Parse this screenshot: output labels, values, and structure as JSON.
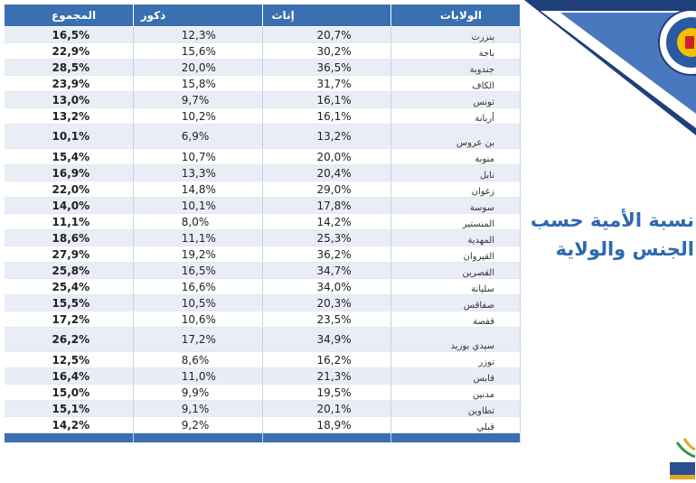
{
  "table": {
    "headers": [
      "المجموع",
      "ذكور",
      "إناث",
      "الولايات"
    ],
    "rows": [
      {
        "total": "16,5%",
        "male": "12,3%",
        "female": "20,7%",
        "gov": "بنزرت"
      },
      {
        "total": "22,9%",
        "male": "15,6%",
        "female": "30,2%",
        "gov": "باجة"
      },
      {
        "total": "28,5%",
        "male": "20,0%",
        "female": "36,5%",
        "gov": "جندوبة"
      },
      {
        "total": "23,9%",
        "male": "15,8%",
        "female": "31,7%",
        "gov": "الكاف"
      },
      {
        "total": "13,0%",
        "male": "9,7%",
        "female": "16,1%",
        "gov": "تونس"
      },
      {
        "total": "13,2%",
        "male": "10,2%",
        "female": "16,1%",
        "gov": "أريانة"
      },
      {
        "total": "10,1%",
        "male": "6,9%",
        "female": "13,2%",
        "gov": "بن عروس"
      },
      {
        "total": "15,4%",
        "male": "10,7%",
        "female": "20,0%",
        "gov": "منوبة"
      },
      {
        "total": "16,9%",
        "male": "13,3%",
        "female": "20,4%",
        "gov": "نابل"
      },
      {
        "total": "22,0%",
        "male": "14,8%",
        "female": "29,0%",
        "gov": "زغوان"
      },
      {
        "total": "14,0%",
        "male": "10,1%",
        "female": "17,8%",
        "gov": "سوسة"
      },
      {
        "total": "11,1%",
        "male": "8,0%",
        "female": "14,2%",
        "gov": "المنستير"
      },
      {
        "total": "18,6%",
        "male": "11,1%",
        "female": "25,3%",
        "gov": "المهدية"
      },
      {
        "total": "27,9%",
        "male": "19,2%",
        "female": "36,2%",
        "gov": "القيروان"
      },
      {
        "total": "25,8%",
        "male": "16,5%",
        "female": "34,7%",
        "gov": "القصرين"
      },
      {
        "total": "25,4%",
        "male": "16,6%",
        "female": "34,0%",
        "gov": "سليانة"
      },
      {
        "total": "15,5%",
        "male": "10,5%",
        "female": "20,3%",
        "gov": "صفاقس"
      },
      {
        "total": "17,2%",
        "male": "10,6%",
        "female": "23,5%",
        "gov": "قفصة"
      },
      {
        "total": "26,2%",
        "male": "17,2%",
        "female": "34,9%",
        "gov": "سيدي بوزيد"
      },
      {
        "total": "12,5%",
        "male": "8,6%",
        "female": "16,2%",
        "gov": "توزر"
      },
      {
        "total": "16,4%",
        "male": "11,0%",
        "female": "21,3%",
        "gov": "قابس"
      },
      {
        "total": "15,0%",
        "male": "9,9%",
        "female": "19,5%",
        "gov": "مدنين"
      },
      {
        "total": "15,1%",
        "male": "9,1%",
        "female": "20,1%",
        "gov": "تطاوين"
      },
      {
        "total": "14,2%",
        "male": "9,2%",
        "female": "18,9%",
        "gov": "قبلي"
      }
    ]
  },
  "title": {
    "line1": "نسبة الأمية حسب",
    "line2": "الجنس والولاية"
  },
  "colors": {
    "header_bg": "#3a6fb0",
    "title_color": "#2e68b0",
    "banner_dark": "#1f3f7a",
    "banner_light": "#4a78bf"
  },
  "icons": {
    "top_logo": "institute-seal-icon",
    "bottom_logo": "logo-fragment-icon"
  }
}
